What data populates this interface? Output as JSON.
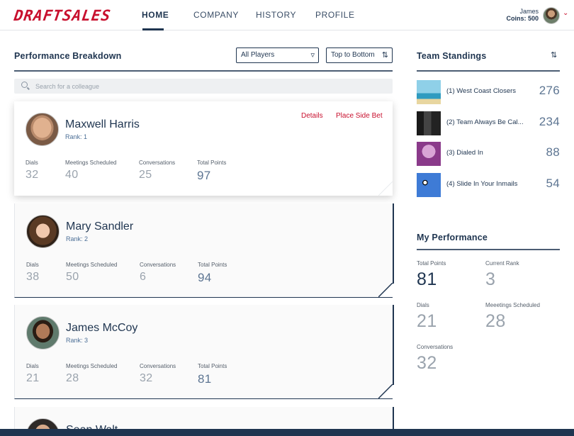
{
  "nav": {
    "logo": "DRAFTSALES",
    "items": [
      "HOME",
      "COMPANY",
      "HISTORY",
      "PROFILE"
    ],
    "active_index": 0,
    "user_name": "James",
    "user_coins": "Coins: 500"
  },
  "breakdown": {
    "title": "Performance Breakdown",
    "filter_label": "All Players",
    "sort_label": "Top to Bottom",
    "search_placeholder": "Search for a colleague",
    "stat_labels": {
      "dials": "Dials",
      "meetings": "Meetings Scheduled",
      "conversations": "Conversations",
      "total": "Total Points"
    },
    "details_label": "Details",
    "side_bet_label": "Place Side Bet",
    "players": [
      {
        "name": "Maxwell Harris",
        "rank": "Rank: 1",
        "dials": "32",
        "meetings": "40",
        "conversations": "25",
        "total": "97"
      },
      {
        "name": "Mary Sandler",
        "rank": "Rank: 2",
        "dials": "38",
        "meetings": "50",
        "conversations": "6",
        "total": "94"
      },
      {
        "name": "James McCoy",
        "rank": "Rank: 3",
        "dials": "21",
        "meetings": "28",
        "conversations": "32",
        "total": "81"
      },
      {
        "name": "Sean Walt",
        "rank": "",
        "dials": "",
        "meetings": "",
        "conversations": "",
        "total": ""
      }
    ]
  },
  "standings": {
    "title": "Team Standings",
    "teams": [
      {
        "name": "(1) West Coast Closers",
        "score": "276"
      },
      {
        "name": "(2) Team Always Be Cal...",
        "score": "234"
      },
      {
        "name": "(3) Dialed In",
        "score": "88"
      },
      {
        "name": "(4) Slide In Your Inmails",
        "score": "54"
      }
    ]
  },
  "my_performance": {
    "title": "My Performance",
    "total_label": "Total Points",
    "total_value": "81",
    "rank_label": "Current Rank",
    "rank_value": "3",
    "dials_label": "Dials",
    "dials_value": "21",
    "meetings_label": "Meeetings Scheduled",
    "meetings_value": "28",
    "conversations_label": "Conversations",
    "conversations_value": "32"
  },
  "colors": {
    "brand": "#c8102e",
    "navy": "#1f3550",
    "muted": "#9aa3ad"
  }
}
